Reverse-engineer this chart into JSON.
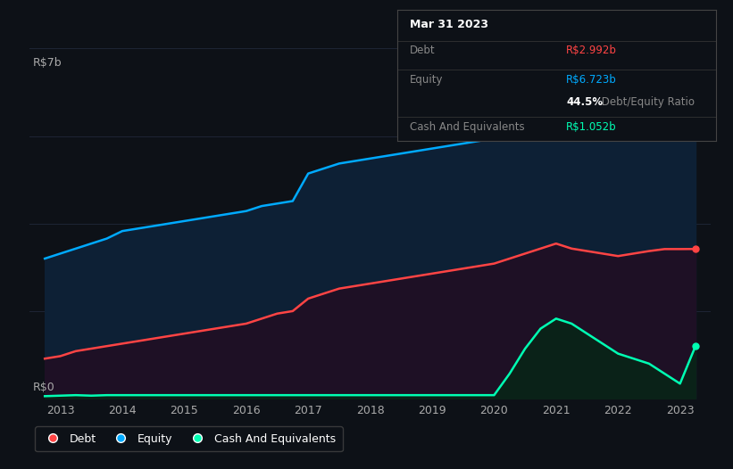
{
  "background_color": "#0d1117",
  "plot_bg_color": "#0d1117",
  "ylabel_text": "R$7b",
  "y0_text": "R$0",
  "x_ticks": [
    2013,
    2014,
    2015,
    2016,
    2017,
    2018,
    2019,
    2020,
    2021,
    2022,
    2023
  ],
  "equity_color": "#00aaff",
  "debt_color": "#ff4444",
  "cash_color": "#00ffb3",
  "grid_color": "#1e2535",
  "debt_label": "Debt",
  "equity_label": "Equity",
  "cash_label": "Cash And Equivalents",
  "tooltip_title": "Mar 31 2023",
  "tooltip_debt_label": "Debt",
  "tooltip_debt_value": "R$2.992b",
  "tooltip_equity_label": "Equity",
  "tooltip_equity_value": "R$6.723b",
  "tooltip_ratio_bold": "44.5%",
  "tooltip_ratio_rest": " Debt/Equity Ratio",
  "tooltip_cash_label": "Cash And Equivalents",
  "tooltip_cash_value": "R$1.052b",
  "years": [
    2012.75,
    2013.0,
    2013.25,
    2013.5,
    2013.75,
    2014.0,
    2014.25,
    2014.5,
    2014.75,
    2015.0,
    2015.25,
    2015.5,
    2015.75,
    2016.0,
    2016.25,
    2016.5,
    2016.75,
    2017.0,
    2017.25,
    2017.5,
    2017.75,
    2018.0,
    2018.25,
    2018.5,
    2018.75,
    2019.0,
    2019.25,
    2019.5,
    2019.75,
    2020.0,
    2020.25,
    2020.5,
    2020.75,
    2021.0,
    2021.25,
    2021.5,
    2021.75,
    2022.0,
    2022.25,
    2022.5,
    2022.75,
    2023.0,
    2023.25
  ],
  "equity": [
    2.8,
    2.9,
    3.0,
    3.1,
    3.2,
    3.35,
    3.4,
    3.45,
    3.5,
    3.55,
    3.6,
    3.65,
    3.7,
    3.75,
    3.85,
    3.9,
    3.95,
    4.5,
    4.6,
    4.7,
    4.75,
    4.8,
    4.85,
    4.9,
    4.95,
    5.0,
    5.05,
    5.1,
    5.15,
    5.2,
    5.4,
    5.7,
    6.0,
    6.5,
    6.6,
    6.65,
    6.65,
    6.6,
    6.65,
    6.7,
    6.72,
    6.72,
    6.723
  ],
  "debt": [
    0.8,
    0.85,
    0.95,
    1.0,
    1.05,
    1.1,
    1.15,
    1.2,
    1.25,
    1.3,
    1.35,
    1.4,
    1.45,
    1.5,
    1.6,
    1.7,
    1.75,
    2.0,
    2.1,
    2.2,
    2.25,
    2.3,
    2.35,
    2.4,
    2.45,
    2.5,
    2.55,
    2.6,
    2.65,
    2.7,
    2.8,
    2.9,
    3.0,
    3.1,
    3.0,
    2.95,
    2.9,
    2.85,
    2.9,
    2.95,
    2.99,
    2.99,
    2.992
  ],
  "cash": [
    0.05,
    0.06,
    0.07,
    0.06,
    0.07,
    0.07,
    0.07,
    0.07,
    0.07,
    0.07,
    0.07,
    0.07,
    0.07,
    0.07,
    0.07,
    0.07,
    0.07,
    0.07,
    0.07,
    0.07,
    0.07,
    0.07,
    0.07,
    0.07,
    0.07,
    0.07,
    0.07,
    0.07,
    0.07,
    0.07,
    0.5,
    1.0,
    1.4,
    1.6,
    1.5,
    1.3,
    1.1,
    0.9,
    0.8,
    0.7,
    0.5,
    0.3,
    1.052
  ],
  "ylim": [
    0,
    7.5
  ],
  "xlim": [
    2012.5,
    2023.5
  ],
  "grid_yvals": [
    1.75,
    3.5,
    5.25,
    7.0
  ]
}
